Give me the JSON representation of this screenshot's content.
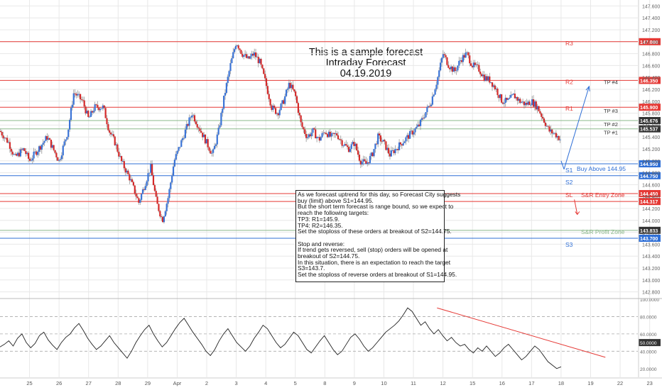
{
  "title_lines": [
    "This is a sample forecast",
    "Intraday Forecast",
    "04.19.2019"
  ],
  "note_lines": [
    "As we forecast uptrend for this day, so Forecast City suggests",
    "buy (limit) above S1=144.95.",
    "But the short term forecast is range bound, so we expect to",
    "reach the following targets:",
    "TP3: R1=145.9.",
    "TP4: R2=146.35.",
    "Set the stoploss of these orders at breakout of S2=144.75.",
    "",
    "Stop and reverse:",
    "If trend gets reversed, sell (stop) orders will be opened at",
    "breakout of S2=144.75.",
    "In this situation, there is an expectation to reach the target",
    "S3=143.7.",
    "Set the stoploss of reverse orders at breakout of S1=144.95."
  ],
  "colors": {
    "up": "#3a73d6",
    "down": "#d42a2a",
    "wick": "#888888",
    "resistance": "#e53935",
    "support": "#2f6fd6",
    "tp": "#8bb88b",
    "grid": "#e8e8e8",
    "osc": "#222222",
    "trendline": "#e53935",
    "dark_badge": "#333333"
  },
  "chart_data": {
    "type": "candlestick",
    "price_axis": {
      "ylim": [
        142.7,
        147.7
      ],
      "ticks": [
        "147.600",
        "147.400",
        "147.200",
        "147.000",
        "146.800",
        "146.600",
        "146.400",
        "146.200",
        "146.000",
        "145.800",
        "145.600",
        "145.400",
        "145.200",
        "145.000",
        "144.800",
        "144.600",
        "144.400",
        "144.200",
        "144.000",
        "143.800",
        "143.600",
        "143.400",
        "143.200",
        "143.000",
        "142.800"
      ]
    },
    "x_axis": {
      "labels": [
        "25",
        "26",
        "27",
        "28",
        "29",
        "Apr",
        "2",
        "3",
        "4",
        "5",
        "8",
        "9",
        "10",
        "11",
        "12",
        "15",
        "16",
        "17",
        "18",
        "19",
        "22",
        "23"
      ],
      "domain": [
        0,
        21.6
      ]
    },
    "levels": [
      {
        "name": "R3",
        "value": 147.0,
        "badge": "147.000",
        "kind": "resistance"
      },
      {
        "name": "R2",
        "value": 146.35,
        "badge": "146.350",
        "kind": "resistance"
      },
      {
        "name": "R1",
        "value": 145.9,
        "badge": "145.900",
        "kind": "resistance"
      },
      {
        "name": "",
        "value": 145.676,
        "badge": "145.676",
        "kind": "tp",
        "label": "TP #2"
      },
      {
        "name": "",
        "value": 145.537,
        "badge": "145.537",
        "kind": "tp",
        "label": "TP #1"
      },
      {
        "name": "S1",
        "value": 144.95,
        "badge": "144.950",
        "kind": "support",
        "label": "Buy Above 144.95"
      },
      {
        "name": "S2",
        "value": 144.75,
        "badge": "144.750",
        "kind": "support"
      },
      {
        "name": "SL",
        "value": 144.45,
        "badge": "144.450",
        "kind": "resistance",
        "label": "S&R Entry Zone"
      },
      {
        "name": "",
        "value": 144.317,
        "badge": "144.317",
        "kind": "resistance"
      },
      {
        "name": "",
        "value": 143.833,
        "badge": "143.833",
        "kind": "tp",
        "label": "S&R Profit Zone"
      },
      {
        "name": "S3",
        "value": 143.7,
        "badge": "143.700",
        "kind": "support"
      }
    ],
    "tp_labels": [
      {
        "label": "TP #4",
        "value": 146.35
      },
      {
        "label": "TP #3",
        "value": 145.9
      },
      {
        "label": "TP #2",
        "value": 145.676
      },
      {
        "label": "TP #1",
        "value": 145.537
      }
    ],
    "price_path": [
      [
        0.0,
        145.5
      ],
      [
        0.3,
        145.3
      ],
      [
        0.5,
        145.05
      ],
      [
        0.8,
        145.2
      ],
      [
        1.0,
        145.0
      ],
      [
        1.3,
        145.2
      ],
      [
        1.6,
        145.4
      ],
      [
        1.8,
        145.2
      ],
      [
        2.0,
        145.0
      ],
      [
        2.3,
        145.5
      ],
      [
        2.5,
        146.15
      ],
      [
        2.8,
        146.0
      ],
      [
        3.0,
        145.7
      ],
      [
        3.2,
        145.9
      ],
      [
        3.5,
        145.9
      ],
      [
        3.7,
        145.5
      ],
      [
        3.9,
        145.3
      ],
      [
        4.1,
        145.0
      ],
      [
        4.4,
        144.7
      ],
      [
        4.7,
        144.3
      ],
      [
        4.9,
        144.6
      ],
      [
        5.1,
        144.9
      ],
      [
        5.3,
        144.3
      ],
      [
        5.5,
        144.0
      ],
      [
        5.7,
        144.4
      ],
      [
        5.9,
        145.0
      ],
      [
        6.2,
        145.4
      ],
      [
        6.5,
        145.8
      ],
      [
        6.7,
        145.6
      ],
      [
        7.0,
        145.3
      ],
      [
        7.2,
        145.1
      ],
      [
        7.4,
        145.5
      ],
      [
        7.6,
        146.1
      ],
      [
        7.8,
        146.6
      ],
      [
        8.0,
        147.0
      ],
      [
        8.2,
        146.8
      ],
      [
        8.4,
        146.7
      ],
      [
        8.6,
        146.8
      ],
      [
        8.8,
        146.65
      ],
      [
        9.0,
        146.3
      ],
      [
        9.2,
        145.9
      ],
      [
        9.4,
        145.8
      ],
      [
        9.6,
        146.0
      ],
      [
        9.8,
        146.3
      ],
      [
        10.0,
        146.1
      ],
      [
        10.2,
        145.6
      ],
      [
        10.4,
        145.4
      ],
      [
        10.6,
        145.5
      ],
      [
        10.8,
        145.35
      ],
      [
        11.0,
        145.5
      ],
      [
        11.2,
        145.4
      ],
      [
        11.4,
        145.45
      ],
      [
        11.6,
        145.3
      ],
      [
        11.8,
        145.2
      ],
      [
        12.0,
        145.3
      ],
      [
        12.2,
        145.0
      ],
      [
        12.4,
        144.95
      ],
      [
        12.6,
        145.1
      ],
      [
        12.8,
        145.4
      ],
      [
        13.0,
        145.3
      ],
      [
        13.2,
        145.1
      ],
      [
        13.4,
        145.2
      ],
      [
        13.6,
        145.3
      ],
      [
        13.8,
        145.4
      ],
      [
        14.0,
        145.5
      ],
      [
        14.2,
        145.6
      ],
      [
        14.4,
        145.8
      ],
      [
        14.6,
        146.0
      ],
      [
        14.8,
        146.35
      ],
      [
        15.0,
        146.8
      ],
      [
        15.2,
        146.6
      ],
      [
        15.4,
        146.5
      ],
      [
        15.6,
        146.7
      ],
      [
        15.8,
        146.8
      ],
      [
        16.0,
        146.6
      ],
      [
        16.2,
        146.55
      ],
      [
        16.4,
        146.4
      ],
      [
        16.6,
        146.35
      ],
      [
        16.8,
        146.2
      ],
      [
        17.0,
        146.0
      ],
      [
        17.2,
        146.0
      ],
      [
        17.4,
        146.1
      ],
      [
        17.6,
        146.0
      ],
      [
        17.8,
        145.95
      ],
      [
        18.0,
        146.0
      ],
      [
        18.2,
        145.9
      ],
      [
        18.4,
        145.7
      ],
      [
        18.6,
        145.5
      ],
      [
        18.8,
        145.45
      ],
      [
        19.0,
        145.35
      ]
    ],
    "oscillator": {
      "ylim": [
        10,
        100
      ],
      "ticks": [
        "100.0000",
        "80.0000",
        "60.0000",
        "50.0000",
        "40.0000",
        "20.0000"
      ],
      "highlight_tick": "50.0000",
      "values": [
        45,
        48,
        52,
        46,
        55,
        60,
        50,
        44,
        49,
        58,
        62,
        53,
        47,
        42,
        50,
        56,
        60,
        67,
        72,
        64,
        55,
        48,
        42,
        46,
        52,
        58,
        50,
        44,
        38,
        32,
        40,
        50,
        58,
        65,
        70,
        60,
        52,
        45,
        50,
        58,
        66,
        73,
        78,
        70,
        62,
        55,
        48,
        40,
        35,
        42,
        52,
        60,
        66,
        58,
        50,
        45,
        40,
        46,
        55,
        62,
        70,
        66,
        58,
        50,
        44,
        48,
        55,
        62,
        58,
        50,
        42,
        38,
        45,
        52,
        58,
        50,
        42,
        36,
        40,
        48,
        56,
        60,
        54,
        46,
        40,
        44,
        50,
        56,
        62,
        66,
        70,
        75,
        82,
        90,
        86,
        78,
        70,
        74,
        66,
        60,
        65,
        58,
        52,
        56,
        50,
        46,
        48,
        42,
        38,
        44,
        40,
        46,
        40,
        34,
        38,
        44,
        48,
        42,
        36,
        30,
        34,
        40,
        46,
        42,
        35,
        28,
        24,
        20,
        22
      ],
      "trendline": {
        "from": [
          14.8,
          90
        ],
        "to": [
          20.5,
          33
        ]
      }
    },
    "forecast_arrow": {
      "from": [
        19.1,
        144.93
      ],
      "to": [
        19.95,
        146.25
      ]
    },
    "entry_arrow": {
      "from": [
        19.45,
        144.35
      ],
      "to": [
        19.55,
        144.1
      ]
    }
  }
}
